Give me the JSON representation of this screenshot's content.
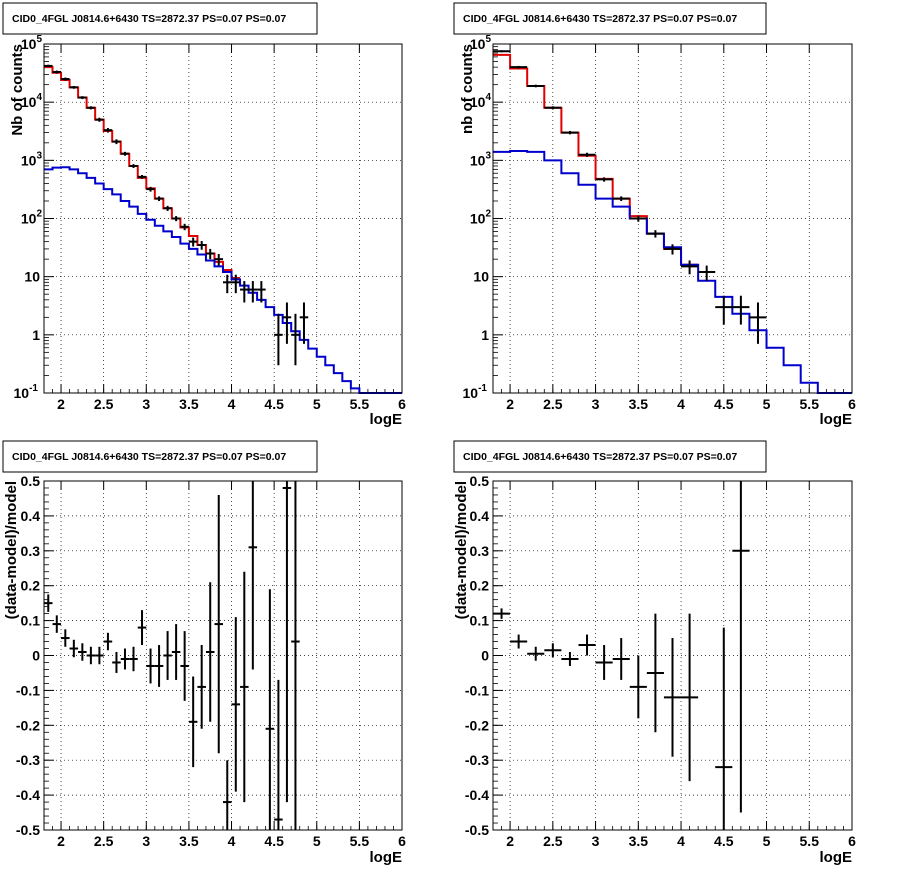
{
  "chart_data": [
    {
      "type": "line",
      "panel": "spectrum-left",
      "title": "CID0_4FGL J0814.6+6430 TS=2872.37 PS=0.07 PS=0.07",
      "xlabel": "logE",
      "ylabel": "Nb of counts",
      "xlim": [
        1.8,
        6.0
      ],
      "ylim": [
        0.1,
        100000
      ],
      "yscale": "log",
      "grid": true,
      "xticks": [
        "2",
        "2.5",
        "3",
        "3.5",
        "4",
        "4.5",
        "5",
        "5.5",
        "6"
      ],
      "yticks": [
        "10^-1",
        "1",
        "10",
        "10^2",
        "10^3",
        "10^4",
        "10^5"
      ],
      "series": [
        {
          "role": "total model",
          "color": "#e00000",
          "x": [
            1.8,
            1.9,
            2.0,
            2.1,
            2.2,
            2.3,
            2.4,
            2.5,
            2.6,
            2.7,
            2.8,
            2.9,
            3.0,
            3.1,
            3.2,
            3.3,
            3.4,
            3.5,
            3.6,
            3.7,
            3.8,
            3.9,
            4.0
          ],
          "y": [
            40000,
            32000,
            24000,
            18000,
            12000,
            8000,
            5000,
            3200,
            2100,
            1300,
            800,
            500,
            330,
            220,
            150,
            100,
            70,
            50,
            35,
            25,
            18,
            13,
            9.5
          ]
        },
        {
          "role": "source model",
          "color": "#0000cc",
          "x": [
            1.8,
            1.9,
            2.0,
            2.1,
            2.2,
            2.3,
            2.4,
            2.5,
            2.6,
            2.7,
            2.8,
            2.9,
            3.0,
            3.1,
            3.2,
            3.3,
            3.4,
            3.5,
            3.6,
            3.7,
            3.8,
            3.9,
            4.0,
            4.1,
            4.2,
            4.3,
            4.4,
            4.5,
            4.6,
            4.7,
            4.8,
            4.9,
            5.0,
            5.1,
            5.2,
            5.3,
            5.4,
            5.5,
            5.6,
            5.7,
            5.8,
            5.9
          ],
          "y": [
            700,
            750,
            760,
            700,
            600,
            500,
            400,
            320,
            260,
            200,
            160,
            120,
            95,
            75,
            60,
            48,
            37,
            30,
            24,
            19,
            15,
            12,
            9,
            7,
            5.3,
            4,
            3,
            2.2,
            1.6,
            1.15,
            0.82,
            0.58,
            0.42,
            0.3,
            0.22,
            0.16,
            0.12,
            0.1,
            0.1,
            0.1,
            0.1,
            0.1
          ]
        }
      ],
      "data_points": [
        {
          "x": 1.85,
          "y": 42000,
          "y_lo": 40000,
          "y_hi": 44000
        },
        {
          "x": 1.95,
          "y": 33000,
          "y_lo": 31000,
          "y_hi": 35000
        },
        {
          "x": 2.05,
          "y": 25000,
          "y_lo": 23500,
          "y_hi": 26500
        },
        {
          "x": 2.15,
          "y": 18000,
          "y_lo": 17000,
          "y_hi": 19000
        },
        {
          "x": 2.25,
          "y": 12000,
          "y_lo": 11300,
          "y_hi": 12700
        },
        {
          "x": 2.35,
          "y": 8000,
          "y_lo": 7500,
          "y_hi": 8500
        },
        {
          "x": 2.45,
          "y": 5000,
          "y_lo": 4600,
          "y_hi": 5400
        },
        {
          "x": 2.55,
          "y": 3300,
          "y_lo": 3000,
          "y_hi": 3600
        },
        {
          "x": 2.65,
          "y": 2100,
          "y_lo": 1900,
          "y_hi": 2300
        },
        {
          "x": 2.75,
          "y": 1300,
          "y_lo": 1200,
          "y_hi": 1400
        },
        {
          "x": 2.85,
          "y": 800,
          "y_lo": 740,
          "y_hi": 860
        },
        {
          "x": 2.95,
          "y": 520,
          "y_lo": 480,
          "y_hi": 560
        },
        {
          "x": 3.05,
          "y": 320,
          "y_lo": 290,
          "y_hi": 350
        },
        {
          "x": 3.15,
          "y": 220,
          "y_lo": 200,
          "y_hi": 240
        },
        {
          "x": 3.25,
          "y": 150,
          "y_lo": 135,
          "y_hi": 165
        },
        {
          "x": 3.35,
          "y": 100,
          "y_lo": 90,
          "y_hi": 110
        },
        {
          "x": 3.45,
          "y": 72,
          "y_lo": 63,
          "y_hi": 81
        },
        {
          "x": 3.55,
          "y": 40,
          "y_lo": 33,
          "y_hi": 47
        },
        {
          "x": 3.65,
          "y": 35,
          "y_lo": 29,
          "y_hi": 41
        },
        {
          "x": 3.75,
          "y": 25,
          "y_lo": 20,
          "y_hi": 30
        },
        {
          "x": 3.85,
          "y": 20,
          "y_lo": 15.5,
          "y_hi": 24.5
        },
        {
          "x": 3.95,
          "y": 8,
          "y_lo": 5.2,
          "y_hi": 10.8
        },
        {
          "x": 4.05,
          "y": 8,
          "y_lo": 5.2,
          "y_hi": 10.8
        },
        {
          "x": 4.15,
          "y": 6,
          "y_lo": 3.6,
          "y_hi": 8.4
        },
        {
          "x": 4.25,
          "y": 6,
          "y_lo": 3.6,
          "y_hi": 8.4
        },
        {
          "x": 4.35,
          "y": 6,
          "y_lo": 3.6,
          "y_hi": 8.4
        },
        {
          "x": 4.55,
          "y": 1,
          "y_lo": 0.3,
          "y_hi": 2.3
        },
        {
          "x": 4.65,
          "y": 2,
          "y_lo": 0.7,
          "y_hi": 3.6
        },
        {
          "x": 4.75,
          "y": 1,
          "y_lo": 0.3,
          "y_hi": 2.3
        },
        {
          "x": 4.85,
          "y": 2,
          "y_lo": 0.7,
          "y_hi": 3.6
        }
      ]
    },
    {
      "type": "line",
      "panel": "spectrum-right",
      "title": "CID0_4FGL J0814.6+6430 TS=2872.37 PS=0.07 PS=0.07",
      "xlabel": "logE",
      "ylabel": "nb of counts",
      "xlim": [
        1.8,
        6.0
      ],
      "ylim": [
        0.1,
        100000
      ],
      "yscale": "log",
      "grid": true,
      "xticks": [
        "2",
        "2.5",
        "3",
        "3.5",
        "4",
        "4.5",
        "5",
        "5.5",
        "6"
      ],
      "yticks": [
        "10^-1",
        "1",
        "10",
        "10^2",
        "10^3",
        "10^4",
        "10^5"
      ],
      "series": [
        {
          "role": "total model",
          "color": "#e00000",
          "x": [
            1.8,
            2.0,
            2.2,
            2.4,
            2.6,
            2.8,
            3.0,
            3.2,
            3.4,
            3.6,
            3.8,
            4.0
          ],
          "y": [
            65000,
            38000,
            19000,
            8000,
            3000,
            1200,
            480,
            220,
            110,
            55,
            30,
            16
          ]
        },
        {
          "role": "source model",
          "color": "#0000cc",
          "x": [
            1.8,
            2.0,
            2.2,
            2.4,
            2.6,
            2.8,
            3.0,
            3.2,
            3.4,
            3.6,
            3.8,
            4.0,
            4.2,
            4.4,
            4.6,
            4.8,
            5.0,
            5.2,
            5.4,
            5.6,
            5.8
          ],
          "y": [
            1400,
            1450,
            1400,
            1000,
            600,
            380,
            220,
            160,
            100,
            55,
            32,
            16,
            8.5,
            4.5,
            2.3,
            1.2,
            0.6,
            0.3,
            0.15,
            0.1,
            0.1
          ]
        }
      ],
      "data_points": [
        {
          "x": 1.9,
          "y": 75000,
          "y_lo": 72000,
          "y_hi": 78000
        },
        {
          "x": 2.1,
          "y": 40000,
          "y_lo": 38000,
          "y_hi": 42000
        },
        {
          "x": 2.3,
          "y": 19000,
          "y_lo": 18000,
          "y_hi": 20000
        },
        {
          "x": 2.5,
          "y": 8000,
          "y_lo": 7500,
          "y_hi": 8500
        },
        {
          "x": 2.7,
          "y": 3000,
          "y_lo": 2800,
          "y_hi": 3200
        },
        {
          "x": 2.9,
          "y": 1250,
          "y_lo": 1150,
          "y_hi": 1350
        },
        {
          "x": 3.1,
          "y": 470,
          "y_lo": 430,
          "y_hi": 510
        },
        {
          "x": 3.3,
          "y": 220,
          "y_lo": 200,
          "y_hi": 240
        },
        {
          "x": 3.5,
          "y": 100,
          "y_lo": 88,
          "y_hi": 112
        },
        {
          "x": 3.7,
          "y": 55,
          "y_lo": 47,
          "y_hi": 63
        },
        {
          "x": 3.9,
          "y": 30,
          "y_lo": 24,
          "y_hi": 36
        },
        {
          "x": 4.1,
          "y": 15,
          "y_lo": 11,
          "y_hi": 19
        },
        {
          "x": 4.3,
          "y": 12,
          "y_lo": 8.5,
          "y_hi": 15.5
        },
        {
          "x": 4.5,
          "y": 3,
          "y_lo": 1.5,
          "y_hi": 4.7
        },
        {
          "x": 4.7,
          "y": 3,
          "y_lo": 1.5,
          "y_hi": 4.7
        },
        {
          "x": 4.9,
          "y": 2,
          "y_lo": 0.7,
          "y_hi": 3.6
        }
      ]
    },
    {
      "type": "scatter",
      "panel": "residual-left",
      "title": "CID0_4FGL J0814.6+6430 TS=2872.37 PS=0.07 PS=0.07",
      "xlabel": "logE",
      "ylabel": "(data-model)/model",
      "xlim": [
        1.8,
        6.0
      ],
      "ylim": [
        -0.5,
        0.5
      ],
      "grid": true,
      "xticks": [
        "2",
        "2.5",
        "3",
        "3.5",
        "4",
        "4.5",
        "5",
        "5.5",
        "6"
      ],
      "yticks": [
        "-0.5",
        "-0.4",
        "-0.3",
        "-0.2",
        "-0.1",
        "0",
        "0.1",
        "0.2",
        "0.3",
        "0.4",
        "0.5"
      ],
      "points": [
        {
          "x": 1.85,
          "y": 0.15,
          "err": 0.025
        },
        {
          "x": 1.95,
          "y": 0.09,
          "err": 0.025
        },
        {
          "x": 2.05,
          "y": 0.05,
          "err": 0.025
        },
        {
          "x": 2.15,
          "y": 0.02,
          "err": 0.025
        },
        {
          "x": 2.25,
          "y": 0.01,
          "err": 0.025
        },
        {
          "x": 2.35,
          "y": 0.0,
          "err": 0.025
        },
        {
          "x": 2.45,
          "y": 0.0,
          "err": 0.025
        },
        {
          "x": 2.55,
          "y": 0.04,
          "err": 0.025
        },
        {
          "x": 2.65,
          "y": -0.02,
          "err": 0.03
        },
        {
          "x": 2.75,
          "y": -0.01,
          "err": 0.03
        },
        {
          "x": 2.85,
          "y": -0.01,
          "err": 0.035
        },
        {
          "x": 2.95,
          "y": 0.08,
          "err": 0.05
        },
        {
          "x": 3.05,
          "y": -0.03,
          "err": 0.05
        },
        {
          "x": 3.15,
          "y": -0.03,
          "err": 0.06
        },
        {
          "x": 3.25,
          "y": 0.0,
          "err": 0.07
        },
        {
          "x": 3.35,
          "y": 0.01,
          "err": 0.08
        },
        {
          "x": 3.45,
          "y": -0.03,
          "err": 0.1
        },
        {
          "x": 3.55,
          "y": -0.19,
          "err": 0.13
        },
        {
          "x": 3.65,
          "y": -0.09,
          "err": 0.12
        },
        {
          "x": 3.75,
          "y": 0.01,
          "err": 0.2
        },
        {
          "x": 3.85,
          "y": 0.09,
          "err": 0.37
        },
        {
          "x": 3.95,
          "y": -0.42,
          "err": 0.12
        },
        {
          "x": 4.05,
          "y": -0.14,
          "err": 0.25
        },
        {
          "x": 4.15,
          "y": -0.09,
          "err": 0.33
        },
        {
          "x": 4.25,
          "y": 0.31,
          "err": 0.35
        },
        {
          "x": 4.45,
          "y": -0.21,
          "err": 0.4
        },
        {
          "x": 4.55,
          "y": -0.47,
          "err": 0.4
        },
        {
          "x": 4.65,
          "y": 0.48,
          "err": 0.9
        },
        {
          "x": 4.75,
          "y": 0.04,
          "err": 0.9
        }
      ]
    },
    {
      "type": "scatter",
      "panel": "residual-right",
      "title": "CID0_4FGL J0814.6+6430 TS=2872.37 PS=0.07 PS=0.07",
      "xlabel": "logE",
      "ylabel": "(data-model)/model",
      "xlim": [
        1.8,
        6.0
      ],
      "ylim": [
        -0.5,
        0.5
      ],
      "grid": true,
      "xticks": [
        "2",
        "2.5",
        "3",
        "3.5",
        "4",
        "4.5",
        "5",
        "5.5",
        "6"
      ],
      "yticks": [
        "-0.5",
        "-0.4",
        "-0.3",
        "-0.2",
        "-0.1",
        "0",
        "0.1",
        "0.2",
        "0.3",
        "0.4",
        "0.5"
      ],
      "points": [
        {
          "x": 1.9,
          "y": 0.12,
          "err": 0.015
        },
        {
          "x": 2.1,
          "y": 0.04,
          "err": 0.02
        },
        {
          "x": 2.3,
          "y": 0.005,
          "err": 0.02
        },
        {
          "x": 2.5,
          "y": 0.015,
          "err": 0.02
        },
        {
          "x": 2.7,
          "y": -0.01,
          "err": 0.02
        },
        {
          "x": 2.9,
          "y": 0.03,
          "err": 0.03
        },
        {
          "x": 3.1,
          "y": -0.02,
          "err": 0.05
        },
        {
          "x": 3.3,
          "y": -0.01,
          "err": 0.06
        },
        {
          "x": 3.5,
          "y": -0.09,
          "err": 0.09
        },
        {
          "x": 3.7,
          "y": -0.05,
          "err": 0.17
        },
        {
          "x": 3.9,
          "y": -0.12,
          "err": 0.17
        },
        {
          "x": 4.1,
          "y": -0.12,
          "err": 0.24
        },
        {
          "x": 4.5,
          "y": -0.32,
          "err": 0.4
        },
        {
          "x": 4.7,
          "y": 0.3,
          "err": 0.75
        }
      ]
    }
  ]
}
